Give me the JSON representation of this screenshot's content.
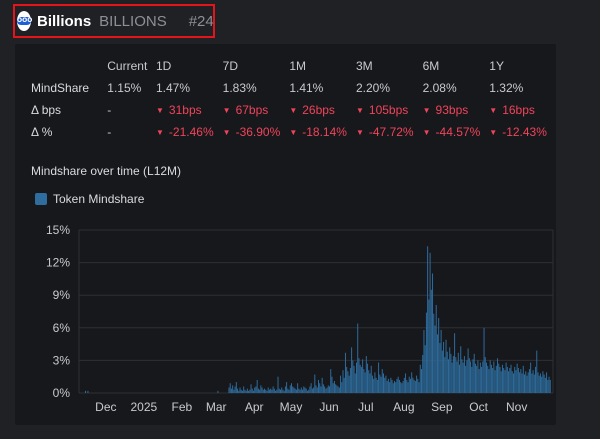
{
  "header": {
    "name": "Billions",
    "ticker": "BILLIONS",
    "rank": "#24",
    "logo_text": "OOO"
  },
  "metrics": {
    "columns": [
      "Current",
      "1D",
      "7D",
      "1M",
      "3M",
      "6M",
      "1Y"
    ],
    "rows": [
      {
        "label": "MindShare",
        "values": [
          "1.15%",
          "1.47%",
          "1.83%",
          "1.41%",
          "2.20%",
          "2.08%",
          "1.32%"
        ],
        "negative": false
      },
      {
        "label": "Δ bps",
        "values": [
          "-",
          "31bps",
          "67bps",
          "26bps",
          "105bps",
          "93bps",
          "16bps"
        ],
        "negative": true
      },
      {
        "label": "Δ %",
        "values": [
          "-",
          "-21.46%",
          "-36.90%",
          "-18.14%",
          "-47.72%",
          "-44.57%",
          "-12.43%"
        ],
        "negative": true
      }
    ]
  },
  "chart_title": "Mindshare over time (L12M)",
  "colors": {
    "bar": "#2e6d9e",
    "negative": "#f0445a",
    "background": "#17181c"
  },
  "chart_data": {
    "type": "bar",
    "series": [
      {
        "name": "Token Mindshare"
      }
    ],
    "ylim": [
      0,
      15
    ],
    "y_ticks": [
      "0%",
      "3%",
      "6%",
      "9%",
      "12%",
      "15%"
    ],
    "x_ticks": [
      "Dec",
      "2025",
      "Feb",
      "Mar",
      "Apr",
      "May",
      "Jun",
      "Jul",
      "Aug",
      "Sep",
      "Oct",
      "Nov"
    ],
    "grid": true,
    "legend_position": "top-left",
    "x_start": "2024-11-14",
    "values": [
      0.2,
      0.0,
      0.2,
      0.0,
      0.0,
      0.0,
      0.0,
      0.0,
      0.0,
      0.0,
      0.0,
      0.0,
      0.0,
      0.0,
      0.0,
      0.0,
      0.0,
      0.0,
      0.0,
      0.0,
      0.0,
      0.0,
      0.0,
      0.0,
      0.0,
      0.0,
      0.0,
      0.0,
      0.0,
      0.0,
      0.0,
      0.0,
      0.0,
      0.0,
      0.0,
      0.0,
      0.0,
      0.0,
      0.0,
      0.0,
      0.0,
      0.0,
      0.0,
      0.0,
      0.0,
      0.0,
      0.0,
      0.0,
      0.0,
      0.0,
      0.0,
      0.0,
      0.0,
      0.0,
      0.0,
      0.0,
      0.0,
      0.0,
      0.0,
      0.0,
      0.0,
      0.0,
      0.0,
      0.0,
      0.0,
      0.0,
      0.0,
      0.0,
      0.0,
      0.0,
      0.0,
      0.0,
      0.0,
      0.0,
      0.0,
      0.0,
      0.0,
      0.0,
      0.0,
      0.0,
      0.0,
      0.0,
      0.0,
      0.0,
      0.0,
      0.0,
      0.0,
      0.0,
      0.0,
      0.0,
      0.0,
      0.0,
      0.0,
      0.0,
      0.0,
      0.0,
      0.0,
      0.0,
      0.0,
      0.0,
      0.0,
      0.0,
      0.0,
      0.0,
      0.0,
      0.0,
      0.0,
      0.0,
      0.2,
      0.0,
      0.0,
      0.0,
      0.0,
      0.0,
      0.0,
      0.0,
      0.0,
      0.5,
      0.9,
      0.4,
      0.7,
      0.3,
      0.6,
      1.0,
      0.4,
      0.2,
      0.5,
      0.3,
      0.2,
      0.6,
      0.3,
      0.2,
      0.4,
      0.2,
      0.3,
      0.8,
      0.4,
      0.2,
      0.5,
      0.6,
      1.2,
      0.4,
      0.3,
      0.7,
      0.5,
      0.3,
      0.4,
      0.3,
      0.2,
      0.5,
      0.3,
      0.4,
      0.3,
      0.6,
      0.4,
      0.2,
      0.3,
      1.5,
      0.4,
      0.3,
      0.5,
      0.3,
      0.2,
      0.6,
      1.0,
      0.4,
      0.3,
      0.7,
      0.9,
      0.6,
      0.5,
      0.4,
      0.3,
      0.9,
      0.4,
      0.3,
      0.5,
      0.3,
      0.6,
      0.5,
      0.4,
      0.2,
      0.3,
      0.6,
      0.9,
      0.4,
      0.5,
      1.7,
      0.7,
      0.5,
      1.2,
      0.9,
      0.6,
      1.4,
      0.8,
      0.6,
      0.4,
      0.5,
      0.7,
      0.6,
      2.2,
      1.5,
      0.9,
      1.1,
      0.8,
      0.7,
      0.6,
      0.5,
      1.6,
      1.0,
      2.1,
      1.4,
      3.7,
      2.4,
      2.0,
      1.6,
      2.3,
      4.2,
      3.0,
      2.5,
      1.8,
      2.8,
      6.4,
      3.2,
      2.6,
      2.4,
      3.1,
      2.2,
      1.9,
      3.4,
      2.7,
      2.1,
      1.8,
      2.5,
      1.6,
      1.3,
      1.9,
      1.4,
      1.2,
      2.8,
      1.7,
      1.5,
      2.2,
      1.8,
      1.4,
      1.6,
      1.1,
      1.3,
      1.0,
      1.4,
      1.2,
      0.9,
      1.1,
      1.0,
      1.3,
      1.5,
      1.2,
      1.0,
      0.9,
      1.1,
      1.4,
      1.8,
      1.2,
      1.0,
      1.5,
      1.3,
      1.9,
      1.4,
      1.2,
      1.1,
      1.6,
      1.3,
      1.0,
      2.6,
      2.2,
      3.5,
      5.8,
      4.4,
      7.4,
      13.5,
      8.6,
      12.9,
      9.5,
      11.0,
      7.3,
      6.2,
      8.1,
      5.4,
      6.9,
      4.6,
      5.8,
      3.9,
      4.7,
      3.3,
      4.9,
      3.8,
      3.1,
      4.2,
      3.6,
      2.8,
      3.4,
      5.5,
      3.3,
      2.9,
      3.7,
      2.6,
      4.3,
      3.1,
      2.8,
      3.4,
      2.5,
      3.0,
      4.1,
      3.2,
      2.9,
      2.4,
      3.1,
      3.6,
      2.7,
      2.5,
      3.0,
      2.2,
      2.8,
      2.4,
      2.9,
      6.0,
      3.3,
      2.8,
      2.5,
      2.2,
      3.0,
      2.6,
      2.3,
      2.9,
      2.1,
      2.5,
      3.2,
      2.7,
      2.4,
      2.0,
      2.6,
      2.3,
      2.1,
      2.8,
      2.4,
      2.0,
      2.3,
      2.6,
      2.0,
      1.8,
      2.4,
      2.1,
      2.7,
      2.3,
      1.9,
      2.2,
      1.8,
      2.5,
      1.7,
      2.0,
      1.6,
      1.9,
      2.2,
      2.8,
      1.8,
      2.1,
      1.7,
      2.4,
      3.9,
      1.9,
      1.6,
      1.8,
      1.5,
      2.0,
      1.7,
      1.4,
      1.9,
      1.2,
      1.5,
      1.2
    ]
  }
}
